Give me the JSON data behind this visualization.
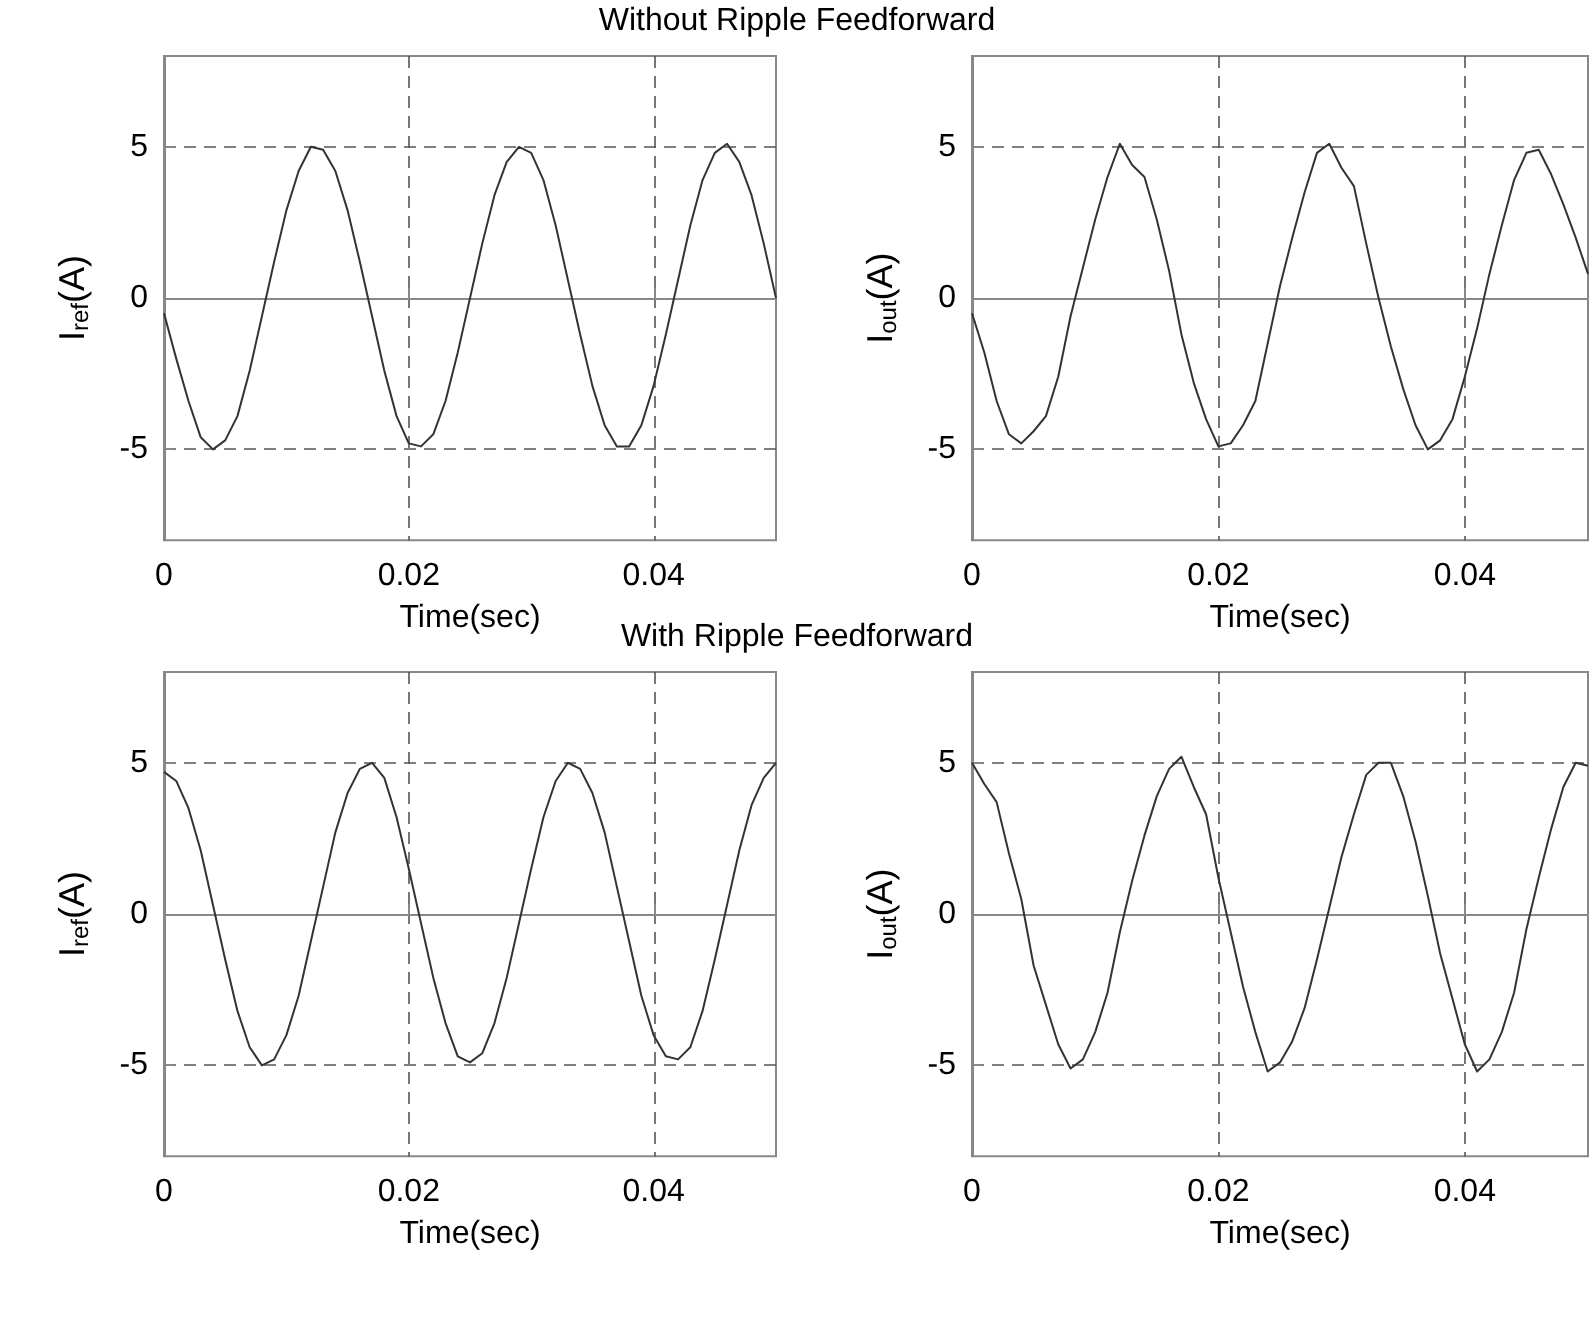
{
  "chart_data": [
    {
      "type": "line",
      "title": "Without Ripple Feedforward",
      "xlabel": "Time(sec)",
      "ylabel": "I$_{ref}$(A)",
      "color": "#333333",
      "x": [
        0,
        0.001,
        0.002,
        0.003,
        0.004,
        0.005,
        0.006,
        0.007,
        0.008,
        0.009,
        0.01,
        0.011,
        0.012,
        0.013,
        0.014,
        0.015,
        0.016,
        0.017,
        0.018,
        0.019,
        0.02,
        0.021,
        0.022,
        0.023,
        0.024,
        0.025,
        0.026,
        0.027,
        0.028,
        0.029,
        0.03,
        0.031,
        0.032,
        0.033,
        0.034,
        0.035,
        0.036,
        0.037,
        0.038,
        0.039,
        0.04,
        0.041,
        0.042,
        0.043,
        0.044,
        0.045,
        0.046,
        0.047,
        0.048,
        0.049,
        0.05
      ],
      "values": [
        -0.5,
        -2.0,
        -3.4,
        -4.6,
        -5.0,
        -4.7,
        -3.9,
        -2.4,
        -0.6,
        1.2,
        2.9,
        4.2,
        5.0,
        4.9,
        4.2,
        2.9,
        1.2,
        -0.6,
        -2.4,
        -3.9,
        -4.8,
        -4.9,
        -4.5,
        -3.4,
        -1.8,
        0,
        1.8,
        3.4,
        4.5,
        5.0,
        4.8,
        3.9,
        2.4,
        0.6,
        -1.2,
        -2.9,
        -4.2,
        -4.9,
        -4.9,
        -4.2,
        -2.9,
        -1.2,
        0.6,
        2.4,
        3.9,
        4.8,
        5.1,
        4.5,
        3.4,
        1.8,
        0
      ],
      "xlim": [
        0,
        0.05
      ],
      "xticks": [
        0,
        0.02,
        0.04
      ],
      "ylim": [
        -8,
        8
      ],
      "yticks": [
        -5,
        0,
        5
      ],
      "grid": true
    },
    {
      "type": "line",
      "xlabel": "Time(sec)",
      "ylabel": "I$_{out}$(A)",
      "color": "#333333",
      "x": [
        0,
        0.001,
        0.002,
        0.003,
        0.004,
        0.005,
        0.006,
        0.007,
        0.008,
        0.009,
        0.01,
        0.011,
        0.012,
        0.013,
        0.014,
        0.015,
        0.016,
        0.017,
        0.018,
        0.019,
        0.02,
        0.021,
        0.022,
        0.023,
        0.024,
        0.025,
        0.026,
        0.027,
        0.028,
        0.029,
        0.03,
        0.031,
        0.032,
        0.033,
        0.034,
        0.035,
        0.036,
        0.037,
        0.038,
        0.039,
        0.04,
        0.041,
        0.042,
        0.043,
        0.044,
        0.045,
        0.046,
        0.047,
        0.048,
        0.049,
        0.05
      ],
      "values": [
        -0.5,
        -1.8,
        -3.4,
        -4.5,
        -4.8,
        -4.4,
        -3.9,
        -2.6,
        -0.6,
        1.0,
        2.6,
        4.0,
        5.1,
        4.4,
        4.0,
        2.6,
        0.9,
        -1.2,
        -2.8,
        -4.0,
        -4.9,
        -4.8,
        -4.2,
        -3.4,
        -1.5,
        0.4,
        2.0,
        3.5,
        4.8,
        5.1,
        4.3,
        3.7,
        1.8,
        0.0,
        -1.6,
        -3.0,
        -4.2,
        -5.0,
        -4.7,
        -4.0,
        -2.6,
        -1.0,
        0.8,
        2.4,
        3.9,
        4.8,
        4.9,
        4.1,
        3.1,
        2.0,
        0.8
      ],
      "xlim": [
        0,
        0.05
      ],
      "xticks": [
        0,
        0.02,
        0.04
      ],
      "ylim": [
        -8,
        8
      ],
      "yticks": [
        -5,
        0,
        5
      ],
      "grid": true
    },
    {
      "type": "line",
      "title": "With Ripple Feedforward",
      "xlabel": "Time(sec)",
      "ylabel": "I$_{ref}$(A)",
      "color": "#333333",
      "x": [
        0,
        0.001,
        0.002,
        0.003,
        0.004,
        0.005,
        0.006,
        0.007,
        0.008,
        0.009,
        0.01,
        0.011,
        0.012,
        0.013,
        0.014,
        0.015,
        0.016,
        0.017,
        0.018,
        0.019,
        0.02,
        0.021,
        0.022,
        0.023,
        0.024,
        0.025,
        0.026,
        0.027,
        0.028,
        0.029,
        0.03,
        0.031,
        0.032,
        0.033,
        0.034,
        0.035,
        0.036,
        0.037,
        0.038,
        0.039,
        0.04,
        0.041,
        0.042,
        0.043,
        0.044,
        0.045,
        0.046,
        0.047,
        0.048,
        0.049,
        0.05
      ],
      "values": [
        4.7,
        4.4,
        3.5,
        2.1,
        0.3,
        -1.5,
        -3.2,
        -4.4,
        -5.0,
        -4.8,
        -4.0,
        -2.7,
        -0.9,
        0.9,
        2.7,
        4.0,
        4.8,
        5.0,
        4.5,
        3.2,
        1.5,
        -0.3,
        -2.1,
        -3.6,
        -4.7,
        -4.9,
        -4.6,
        -3.6,
        -2.1,
        -0.3,
        1.5,
        3.2,
        4.4,
        5.0,
        4.8,
        4.0,
        2.7,
        0.9,
        -0.9,
        -2.7,
        -4.0,
        -4.7,
        -4.8,
        -4.4,
        -3.2,
        -1.5,
        0.3,
        2.1,
        3.6,
        4.5,
        5.0
      ],
      "xlim": [
        0,
        0.05
      ],
      "xticks": [
        0,
        0.02,
        0.04
      ],
      "ylim": [
        -8,
        8
      ],
      "yticks": [
        -5,
        0,
        5
      ],
      "grid": true
    },
    {
      "type": "line",
      "xlabel": "Time(sec)",
      "ylabel": "I$_{out}$(A)",
      "color": "#333333",
      "x": [
        0,
        0.001,
        0.002,
        0.003,
        0.004,
        0.005,
        0.006,
        0.007,
        0.008,
        0.009,
        0.01,
        0.011,
        0.012,
        0.013,
        0.014,
        0.015,
        0.016,
        0.017,
        0.018,
        0.019,
        0.02,
        0.021,
        0.022,
        0.023,
        0.024,
        0.025,
        0.026,
        0.027,
        0.028,
        0.029,
        0.03,
        0.031,
        0.032,
        0.033,
        0.034,
        0.035,
        0.036,
        0.037,
        0.038,
        0.039,
        0.04,
        0.041,
        0.042,
        0.043,
        0.044,
        0.045,
        0.046,
        0.047,
        0.048,
        0.049,
        0.05
      ],
      "values": [
        5.0,
        4.3,
        3.7,
        2.0,
        0.5,
        -1.7,
        -3.0,
        -4.3,
        -5.1,
        -4.8,
        -3.9,
        -2.6,
        -0.6,
        1.1,
        2.6,
        3.9,
        4.8,
        5.2,
        4.2,
        3.3,
        1.2,
        -0.6,
        -2.4,
        -3.9,
        -5.2,
        -4.9,
        -4.2,
        -3.1,
        -1.5,
        0.2,
        1.9,
        3.3,
        4.6,
        5.0,
        5.0,
        3.9,
        2.4,
        0.6,
        -1.3,
        -2.8,
        -4.3,
        -5.2,
        -4.8,
        -3.9,
        -2.6,
        -0.5,
        1.2,
        2.8,
        4.2,
        5.0,
        4.9
      ],
      "xlim": [
        0,
        0.05
      ],
      "xticks": [
        0,
        0.02,
        0.04
      ],
      "ylim": [
        -8,
        8
      ],
      "yticks": [
        -5,
        0,
        5
      ],
      "grid": true
    }
  ]
}
